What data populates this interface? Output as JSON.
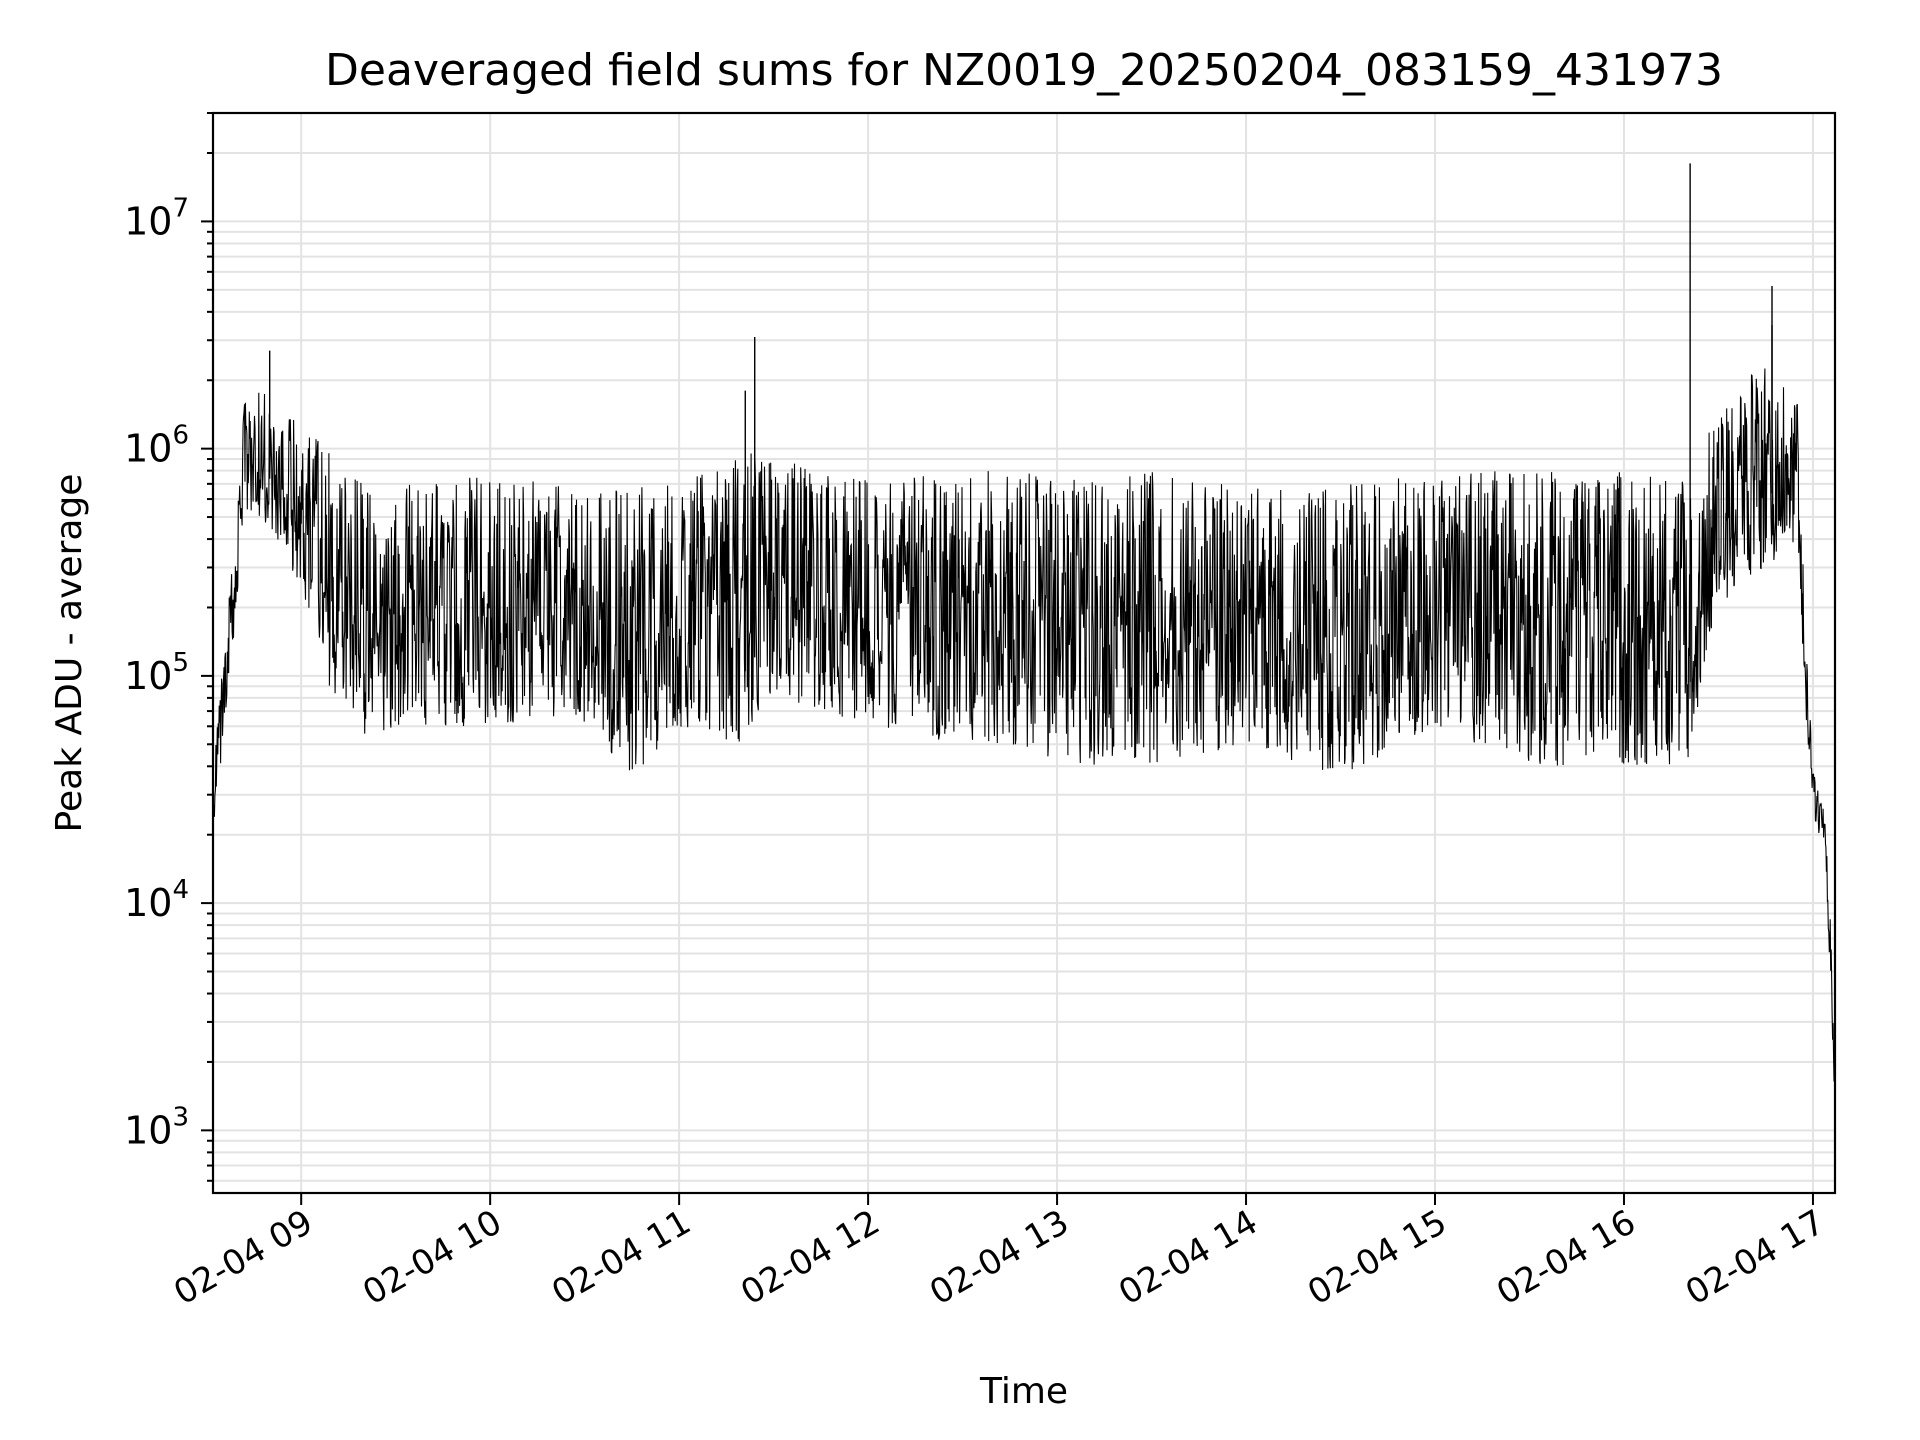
{
  "chart_data": {
    "type": "line",
    "title": "Deaveraged field sums for NZ0019_20250204_083159_431973",
    "xlabel": "Time",
    "ylabel": "Peak ADU - average",
    "yscale": "log",
    "ylim": [
      530,
      30000000
    ],
    "xlim": [
      "2025-02-04 08:32",
      "2025-02-04 17:07"
    ],
    "xticks": [
      "2025-02-04 09:00",
      "2025-02-04 10:00",
      "2025-02-04 11:00",
      "2025-02-04 12:00",
      "2025-02-04 13:00",
      "2025-02-04 14:00",
      "2025-02-04 15:00",
      "2025-02-04 16:00",
      "2025-02-04 17:00"
    ],
    "xtick_labels": [
      "02-04 09",
      "02-04 10",
      "02-04 11",
      "02-04 12",
      "02-04 13",
      "02-04 14",
      "02-04 15",
      "02-04 16",
      "02-04 17"
    ],
    "yticks": [
      {
        "base": "10",
        "exp": "3",
        "value": 1000
      },
      {
        "base": "10",
        "exp": "4",
        "value": 10000
      },
      {
        "base": "10",
        "exp": "5",
        "value": 100000
      },
      {
        "base": "10",
        "exp": "6",
        "value": 1000000
      },
      {
        "base": "10",
        "exp": "7",
        "value": 10000000
      }
    ],
    "grid": true,
    "line_color": "#000000",
    "series": [
      {
        "envelope_x": [
          "2025-02-04 08:32",
          "2025-02-04 08:36",
          "2025-02-04 08:42",
          "2025-02-04 08:45",
          "2025-02-04 08:50",
          "2025-02-04 09:00",
          "2025-02-04 09:10",
          "2025-02-04 09:20",
          "2025-02-04 09:30",
          "2025-02-04 10:00",
          "2025-02-04 10:30",
          "2025-02-04 10:45",
          "2025-02-04 11:00",
          "2025-02-04 11:20",
          "2025-02-04 11:30",
          "2025-02-04 12:00",
          "2025-02-04 12:30",
          "2025-02-04 12:45",
          "2025-02-04 13:00",
          "2025-02-04 13:30",
          "2025-02-04 14:00",
          "2025-02-04 14:30",
          "2025-02-04 15:00",
          "2025-02-04 15:30",
          "2025-02-04 16:00",
          "2025-02-04 16:20",
          "2025-02-04 16:30",
          "2025-02-04 16:45",
          "2025-02-04 16:55",
          "2025-02-04 16:58",
          "2025-02-04 17:00",
          "2025-02-04 17:02",
          "2025-02-04 17:04",
          "2025-02-04 17:05",
          "2025-02-04 17:06",
          "2025-02-04 17:07"
        ],
        "low": [
          20000,
          60000,
          500000,
          500000,
          400000,
          250000,
          80000,
          50000,
          60000,
          60000,
          60000,
          35000,
          60000,
          50000,
          80000,
          60000,
          50000,
          45000,
          40000,
          40000,
          50000,
          35000,
          60000,
          40000,
          40000,
          40000,
          200000,
          300000,
          400000,
          60000,
          25000,
          20000,
          18000,
          6000,
          3000,
          1200
        ],
        "high": [
          40000,
          150000,
          2000000,
          2500000,
          1500000,
          1300000,
          1000000,
          700000,
          700000,
          800000,
          650000,
          700000,
          700000,
          1000000,
          900000,
          750000,
          800000,
          800000,
          750000,
          800000,
          700000,
          700000,
          800000,
          800000,
          800000,
          800000,
          1500000,
          2500000,
          1700000,
          120000,
          40000,
          30000,
          25000,
          12000,
          6000,
          2000
        ],
        "spikes": [
          {
            "x": "2025-02-04 08:50",
            "y": 2700000
          },
          {
            "x": "2025-02-04 11:21",
            "y": 1800000
          },
          {
            "x": "2025-02-04 11:24",
            "y": 3100000
          },
          {
            "x": "2025-02-04 16:21",
            "y": 18000000
          },
          {
            "x": "2025-02-04 16:47",
            "y": 5200000
          },
          {
            "x": "2025-02-04 16:47",
            "y": 3500000
          }
        ]
      }
    ]
  }
}
